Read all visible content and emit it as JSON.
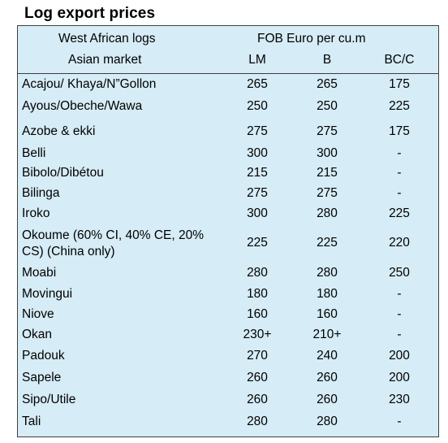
{
  "title": "Log export prices",
  "header": {
    "col1_line1": "West African logs",
    "col1_line2": "Asian market",
    "price_group": "FOB Euro per cu.m",
    "col_lm": "LM",
    "col_b": "B",
    "col_bcc": "BC/C"
  },
  "rows": [
    {
      "name": "Acajou/ Khaya/N”Gollon",
      "lm": "265",
      "b": "265",
      "bcc": "175"
    },
    {
      "name": "Ayous/Obeche/Wawa",
      "lm": "250",
      "b": "250",
      "bcc": "225"
    },
    {
      "name": "Azobe & ekki",
      "lm": "275",
      "b": "275",
      "bcc": "175"
    },
    {
      "name": "Belli",
      "lm": "300",
      "b": "300",
      "bcc": "-"
    },
    {
      "name": "Bibolo/Dibétou",
      "lm": "215",
      "b": "215",
      "bcc": "-"
    },
    {
      "name": "Bilinga",
      "lm": "275",
      "b": "275",
      "bcc": "-"
    },
    {
      "name": "Iroko",
      "lm": "300",
      "b": "280",
      "bcc": "225"
    },
    {
      "name": "Okoume (60% CI, 40% CE, 20% CS) (China only)",
      "lm": "225",
      "b": "225",
      "bcc": "220"
    },
    {
      "name": "Moabi",
      "lm": "280",
      "b": "280",
      "bcc": "250"
    },
    {
      "name": "Movingui",
      "lm": "180",
      "b": "180",
      "bcc": "-"
    },
    {
      "name": "Niove",
      "lm": "160",
      "b": "160",
      "bcc": "-"
    },
    {
      "name": "Okan",
      "lm": "230+",
      "b": "210+",
      "bcc": "-"
    },
    {
      "name": "Padouk",
      "lm": "270",
      "b": "240",
      "bcc": "200"
    },
    {
      "name": "Sapele",
      "lm": "260",
      "b": "260",
      "bcc": "200"
    },
    {
      "name": "Sipo/Utile",
      "lm": "260",
      "b": "260",
      "bcc": "230"
    },
    {
      "name": "Tali",
      "lm": "280",
      "b": "280",
      "bcc": "-"
    }
  ]
}
